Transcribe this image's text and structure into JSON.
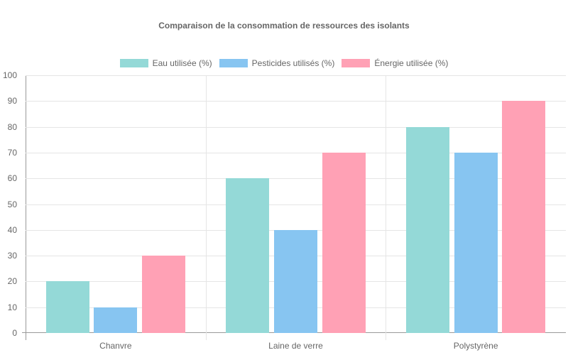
{
  "chart_data": {
    "type": "bar",
    "title": "Comparaison de la consommation de ressources des isolants",
    "xlabel": "",
    "ylabel": "",
    "ylim": [
      0,
      100
    ],
    "yticks": [
      0,
      10,
      20,
      30,
      40,
      50,
      60,
      70,
      80,
      90,
      100
    ],
    "grid": true,
    "legend_position": "top",
    "categories": [
      "Chanvre",
      "Laine de verre",
      "Polystyrène"
    ],
    "series": [
      {
        "name": "Eau utilisée (%)",
        "color": "#94d9d7",
        "values": [
          20,
          60,
          80
        ]
      },
      {
        "name": "Pesticides utilisés (%)",
        "color": "#87c5f1",
        "values": [
          10,
          40,
          70
        ]
      },
      {
        "name": "Énergie utilisée (%)",
        "color": "#ffa1b5",
        "values": [
          30,
          70,
          90
        ]
      }
    ]
  }
}
